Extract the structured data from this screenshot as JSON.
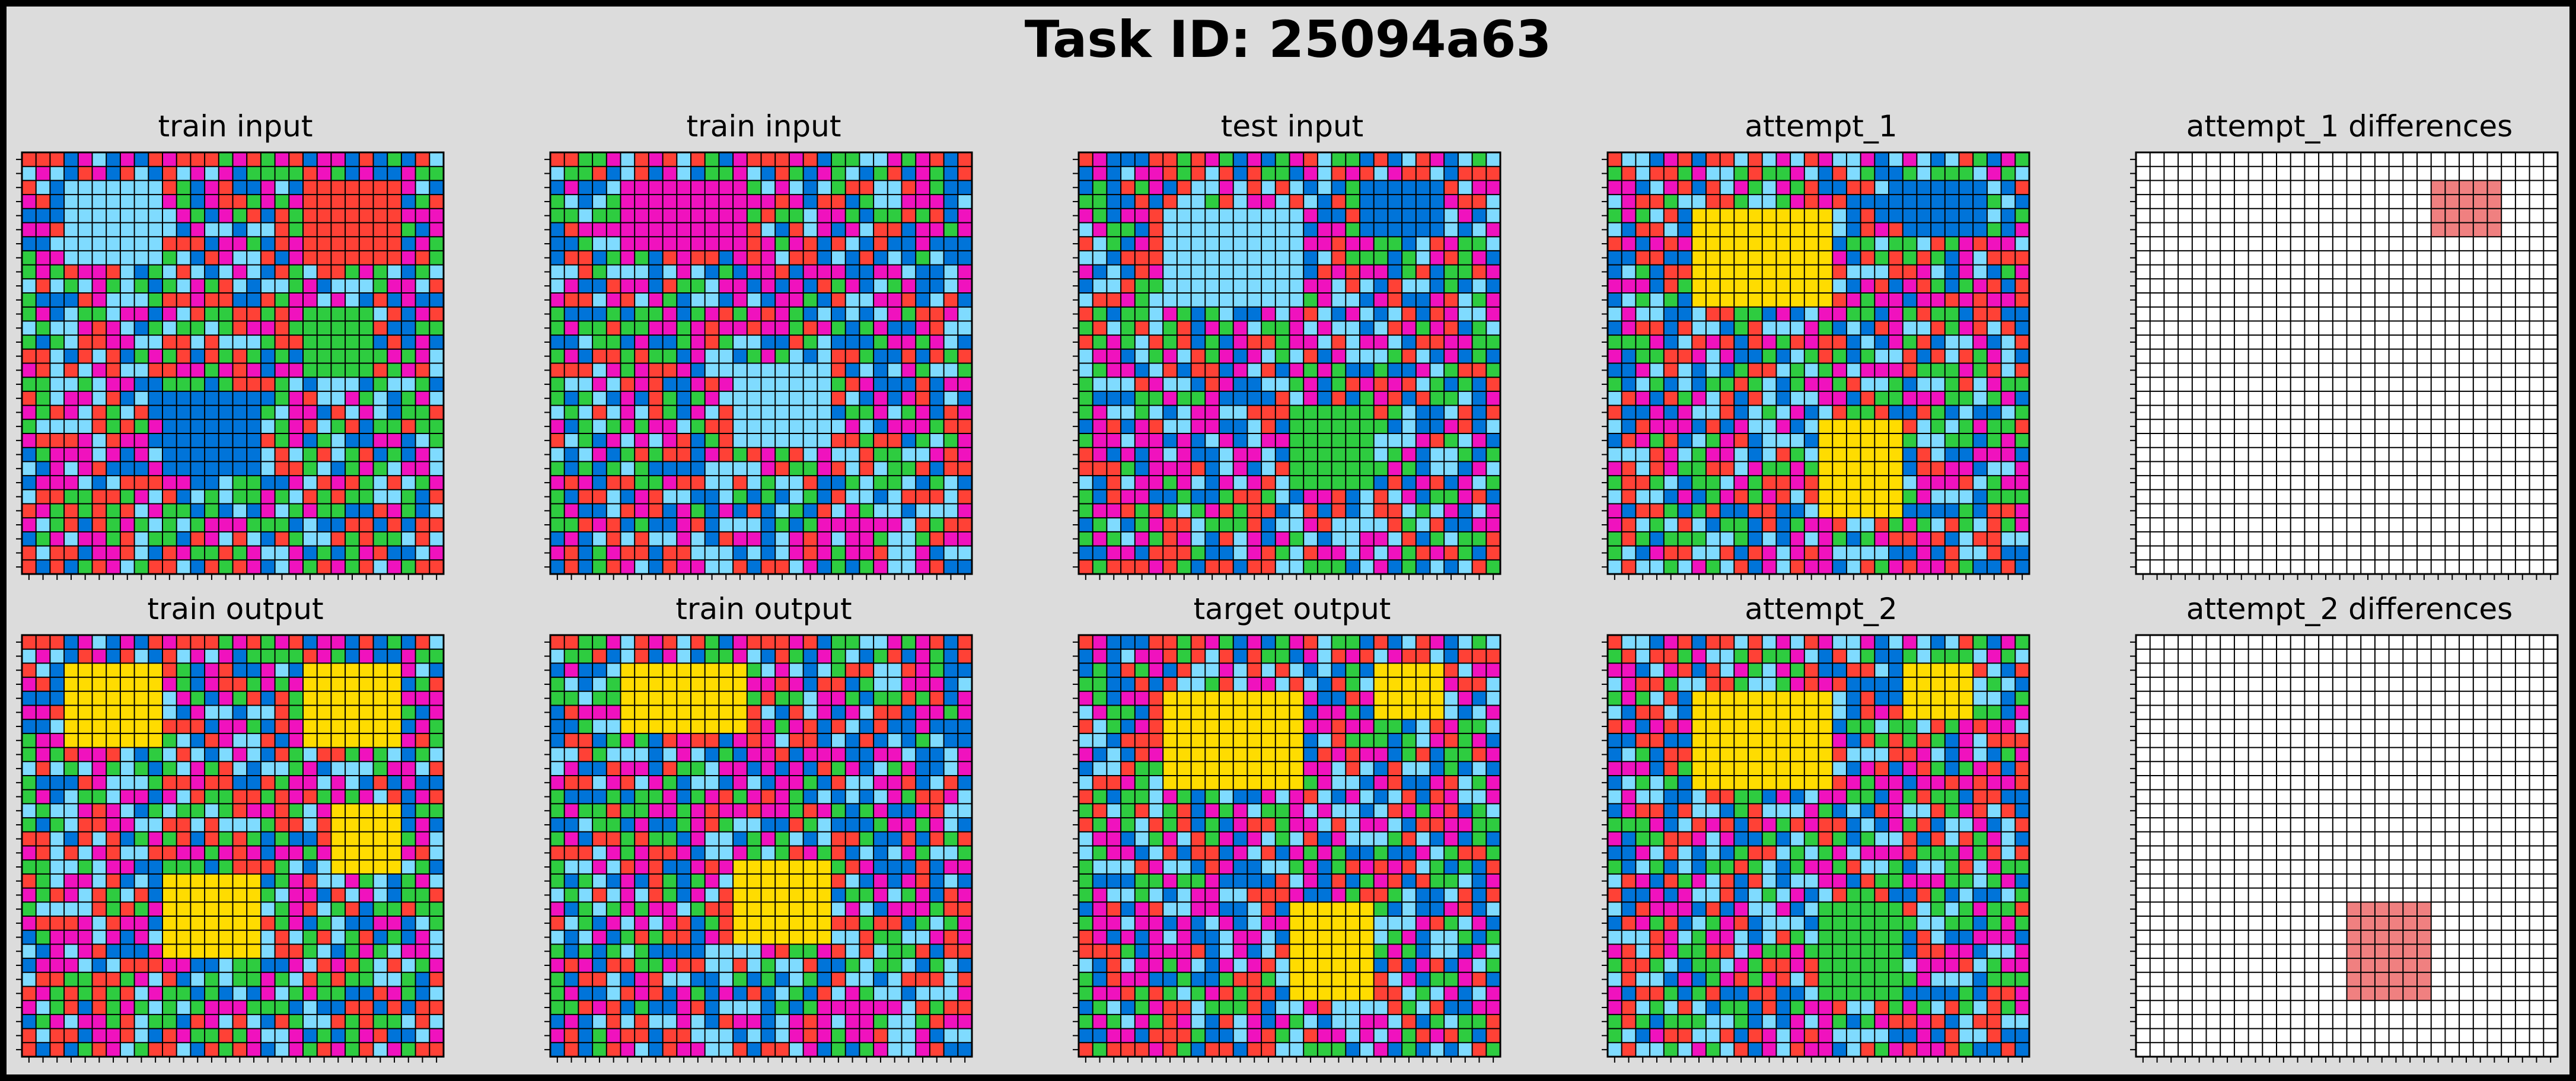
{
  "figure": {
    "title": "Task ID: 25094a63"
  },
  "palette": {
    "bg": "#ffffff",
    "blue": "#0074d9",
    "red": "#ff4136",
    "green": "#2ecc40",
    "yellow": "#ffdc00",
    "magenta": "#f012be",
    "lightblue": "#7fdbff",
    "diff": "#f08080",
    "grid_line": "#000000"
  },
  "grid_size": 30,
  "noise_palette": [
    "blue",
    "red",
    "green",
    "magenta",
    "lightblue"
  ],
  "panels": [
    {
      "key": "p1",
      "title": "train input",
      "seed": 11,
      "blocks": [
        {
          "r0": 2,
          "c0": 3,
          "h": 6,
          "w": 7,
          "color": "lightblue"
        },
        {
          "r0": 2,
          "c0": 20,
          "h": 6,
          "w": 7,
          "color": "red"
        },
        {
          "r0": 11,
          "c0": 20,
          "h": 5,
          "w": 5,
          "color": "green"
        },
        {
          "r0": 17,
          "c0": 10,
          "h": 6,
          "w": 7,
          "color": "blue"
        }
      ]
    },
    {
      "key": "p2",
      "title": "train input",
      "seed": 23,
      "blocks": [
        {
          "r0": 2,
          "c0": 5,
          "h": 5,
          "w": 9,
          "color": "magenta"
        },
        {
          "r0": 15,
          "c0": 13,
          "h": 6,
          "w": 7,
          "color": "lightblue"
        }
      ]
    },
    {
      "key": "p3",
      "title": "test input",
      "seed": 37,
      "blocks": [
        {
          "r0": 2,
          "c0": 20,
          "h": 4,
          "w": 6,
          "color": "blue"
        },
        {
          "r0": 4,
          "c0": 6,
          "h": 7,
          "w": 10,
          "color": "lightblue"
        },
        {
          "r0": 18,
          "c0": 15,
          "h": 6,
          "w": 6,
          "color": "green"
        }
      ]
    },
    {
      "key": "p4",
      "title": "attempt_1",
      "seed": 41,
      "blocks": [
        {
          "r0": 2,
          "c0": 21,
          "h": 4,
          "w": 6,
          "color": "blue"
        },
        {
          "r0": 4,
          "c0": 6,
          "h": 7,
          "w": 10,
          "color": "yellow"
        },
        {
          "r0": 19,
          "c0": 15,
          "h": 7,
          "w": 6,
          "color": "yellow"
        }
      ]
    },
    {
      "key": "p5",
      "title": "attempt_1 differences",
      "seed": 0,
      "mode": "diff",
      "blocks": [
        {
          "r0": 2,
          "c0": 21,
          "h": 4,
          "w": 5,
          "color": "diff"
        }
      ]
    },
    {
      "key": "p6",
      "title": "train output",
      "seed": 11,
      "blocks": [
        {
          "r0": 2,
          "c0": 3,
          "h": 6,
          "w": 7,
          "color": "yellow"
        },
        {
          "r0": 2,
          "c0": 20,
          "h": 6,
          "w": 7,
          "color": "yellow"
        },
        {
          "r0": 12,
          "c0": 22,
          "h": 5,
          "w": 5,
          "color": "yellow"
        },
        {
          "r0": 17,
          "c0": 10,
          "h": 6,
          "w": 7,
          "color": "yellow"
        }
      ]
    },
    {
      "key": "p7",
      "title": "train output",
      "seed": 23,
      "blocks": [
        {
          "r0": 2,
          "c0": 5,
          "h": 5,
          "w": 9,
          "color": "yellow"
        },
        {
          "r0": 16,
          "c0": 13,
          "h": 6,
          "w": 7,
          "color": "yellow"
        }
      ]
    },
    {
      "key": "p8",
      "title": "target output",
      "seed": 37,
      "blocks": [
        {
          "r0": 2,
          "c0": 21,
          "h": 4,
          "w": 5,
          "color": "yellow"
        },
        {
          "r0": 4,
          "c0": 6,
          "h": 7,
          "w": 10,
          "color": "yellow"
        },
        {
          "r0": 19,
          "c0": 15,
          "h": 7,
          "w": 6,
          "color": "yellow"
        }
      ]
    },
    {
      "key": "p9",
      "title": "attempt_2",
      "seed": 41,
      "blocks": [
        {
          "r0": 2,
          "c0": 21,
          "h": 4,
          "w": 5,
          "color": "yellow"
        },
        {
          "r0": 4,
          "c0": 6,
          "h": 7,
          "w": 10,
          "color": "yellow"
        },
        {
          "r0": 19,
          "c0": 15,
          "h": 7,
          "w": 6,
          "color": "green"
        }
      ]
    },
    {
      "key": "p10",
      "title": "attempt_2 differences",
      "seed": 0,
      "mode": "diff",
      "blocks": [
        {
          "r0": 19,
          "c0": 15,
          "h": 7,
          "w": 6,
          "color": "diff"
        }
      ]
    }
  ]
}
